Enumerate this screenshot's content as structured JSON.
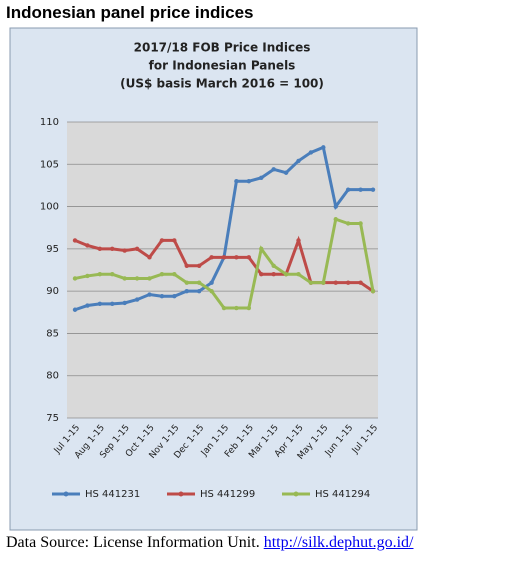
{
  "header": {
    "title": "Indonesian panel price indices"
  },
  "chart_data": {
    "type": "line",
    "title": [
      "2017/18 FOB Price Indices",
      "for Indonesian Panels",
      "(US$ basis March 2016 = 100)"
    ],
    "categories": [
      "Jul 1-15",
      null,
      "Aug 1-15",
      null,
      "Sep 1-15",
      null,
      "Oct 1-15",
      null,
      "Nov 1-15",
      null,
      "Dec 1-15",
      null,
      "Jan 1-15",
      null,
      "Feb 1-15",
      null,
      "Mar 1-15",
      null,
      "Apr 1-15",
      null,
      "May 1-15",
      null,
      "Jun 1-15",
      null,
      "Jul 1-15"
    ],
    "series": [
      {
        "name": "HS 441231",
        "color": "#4a7ebb",
        "values": [
          87.8,
          88.3,
          88.5,
          88.5,
          88.6,
          89,
          89.6,
          89.4,
          89.4,
          90,
          90,
          91,
          94,
          103,
          103,
          103.4,
          104.4,
          104,
          105.4,
          106.4,
          107,
          100,
          102,
          102,
          102
        ]
      },
      {
        "name": "HS 441299",
        "color": "#be4b48",
        "values": [
          96,
          95.4,
          95,
          95,
          94.8,
          95,
          94,
          96,
          96,
          93,
          93,
          94,
          94,
          94,
          94,
          92,
          92,
          92,
          96,
          91,
          91,
          91,
          91,
          91,
          90
        ]
      },
      {
        "name": "HS 441294",
        "color": "#98b954",
        "values": [
          91.5,
          91.8,
          92,
          92,
          91.5,
          91.5,
          91.5,
          92,
          92,
          91,
          91,
          90,
          88,
          88,
          88,
          95,
          93,
          92,
          92,
          91,
          91,
          98.5,
          98,
          98,
          90
        ]
      }
    ],
    "ylim": [
      75,
      110
    ],
    "yticks": [
      75,
      80,
      85,
      90,
      95,
      100,
      105,
      110
    ],
    "grid": true,
    "legend": "bottom"
  },
  "footer": {
    "text": "Data Source: License Information Unit.",
    "link": "http://silk.dephut.go.id/"
  }
}
